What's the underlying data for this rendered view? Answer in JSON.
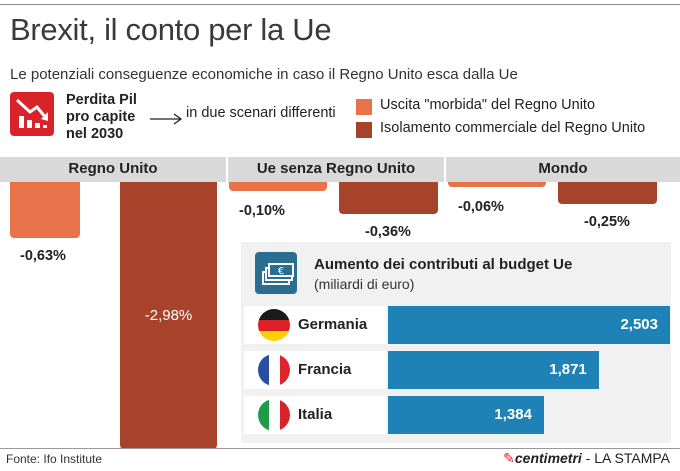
{
  "title": "Brexit, il conto per la Ue",
  "subtitle": "Le potenziali conseguenze economiche in caso il Regno Unito esca dalla Ue",
  "metric": {
    "label_lines": [
      "Perdita Pil",
      "pro capite",
      "nel 2030"
    ],
    "scenario_note": "in due scenari differenti",
    "icon": "declining-chart-icon"
  },
  "legend": [
    {
      "label": "Uscita \"morbida\" del Regno Unito",
      "color": "#e8734a"
    },
    {
      "label": "Isolamento commerciale del Regno Unito",
      "color": "#a8432b"
    }
  ],
  "colors": {
    "soft": "#e8734a",
    "hard": "#a8432b",
    "budget_bar": "#1f82b7",
    "region_band": "#d9d9d9"
  },
  "chart_data": [
    {
      "type": "bar",
      "categories": [
        "Regno Unito",
        "Ue senza Regno Unito",
        "Mondo"
      ],
      "ylabel": "",
      "series": [
        {
          "name": "Uscita \"morbida\" del Regno Unito",
          "values": [
            -0.63,
            -0.1,
            -0.06
          ],
          "labels": [
            "-0,63%",
            "-0,10%",
            "-0,06%"
          ]
        },
        {
          "name": "Isolamento commerciale del Regno Unito",
          "values": [
            -2.98,
            -0.36,
            -0.25
          ],
          "labels": [
            "-2,98%",
            "-0,36%",
            "-0,25%"
          ]
        }
      ]
    },
    {
      "type": "bar",
      "orientation": "horizontal",
      "title": "Aumento dei contributi al budget Ue",
      "subtitle": "(miliardi di euro)",
      "categories": [
        "Germania",
        "Francia",
        "Italia"
      ],
      "values": [
        2.503,
        1.871,
        1.384
      ],
      "labels": [
        "2,503",
        "1,871",
        "1,384"
      ],
      "flags": [
        "germany-flag-icon",
        "france-flag-icon",
        "italy-flag-icon"
      ]
    }
  ],
  "footer": {
    "source": "Fonte: Ifo Institute",
    "brand_centimetri": "centimetri",
    "brand_sep": " - ",
    "brand_paper": "LA STAMPA"
  }
}
